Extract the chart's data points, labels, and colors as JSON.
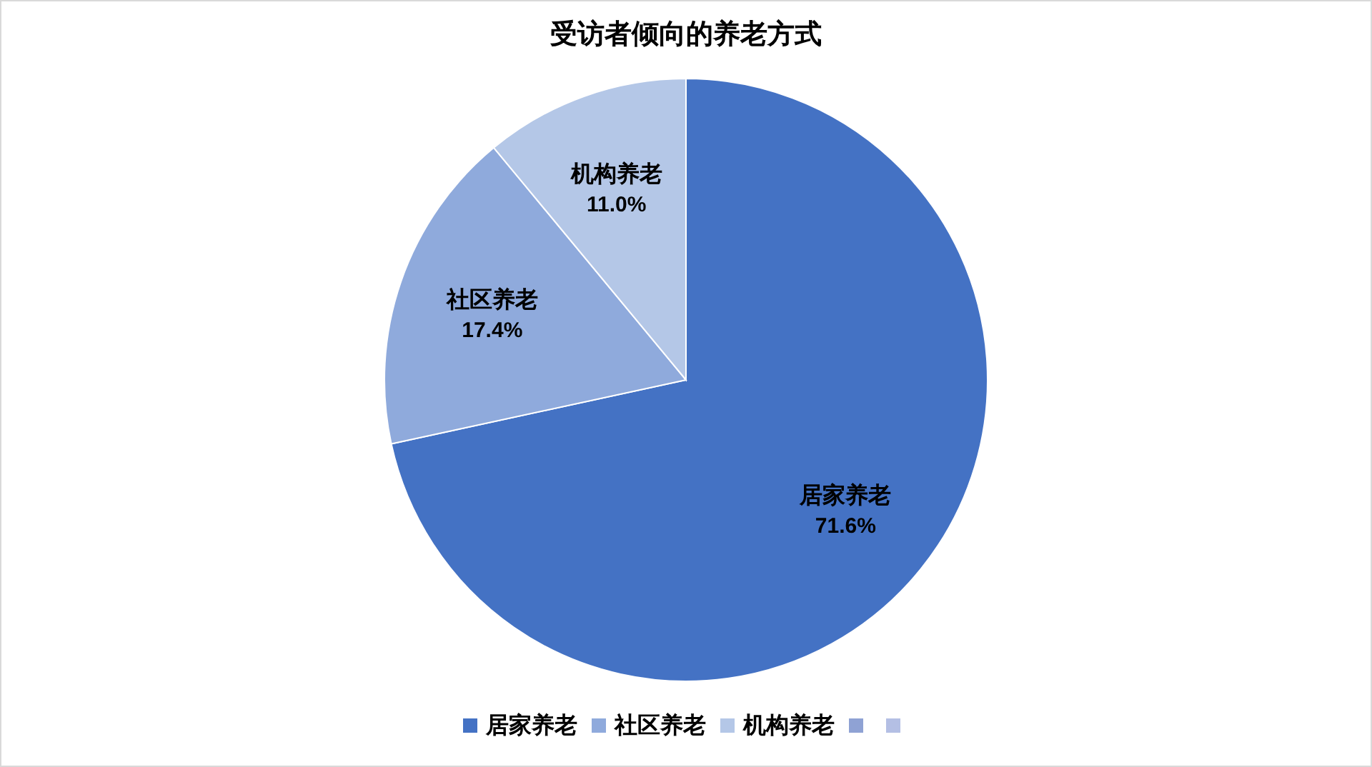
{
  "chart_data": {
    "type": "pie",
    "title": "受访者倾向的养老方式",
    "categories": [
      "居家养老",
      "社区养老",
      "机构养老",
      null,
      null
    ],
    "values": [
      71.6,
      17.4,
      11.0,
      0,
      0
    ],
    "value_labels": [
      "71.6%",
      "17.4%",
      "11.0%",
      null,
      null
    ],
    "colors": [
      "#4472c4",
      "#8faadc",
      "#b4c7e7",
      "#8fa2d4",
      "#b4bfe4"
    ],
    "legend": "bottom"
  }
}
